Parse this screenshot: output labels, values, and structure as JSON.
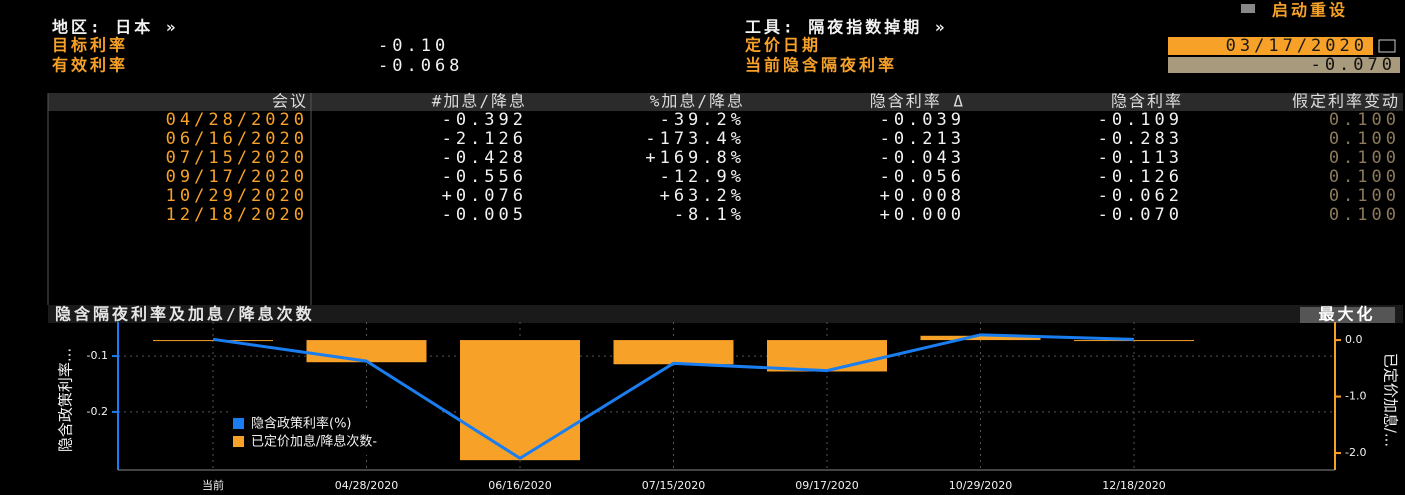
{
  "header": {
    "region": "地区: 日本 »",
    "target_rate_label": "目标利率",
    "target_rate": "-0.10",
    "effective_rate_label": "有效利率",
    "effective_rate": "-0.068",
    "instrument": "工具: 隔夜指数掉期 »",
    "pricing_date_label": "定价日期",
    "pricing_date": "03/17/2020",
    "implied_rate_label": "当前隐含隔夜利率",
    "implied_rate": "-0.070",
    "reset": "启动重设"
  },
  "table": {
    "columns": [
      "会议",
      "#加息/降息",
      "%加息/降息",
      "隐含利率 Δ",
      "隐含利率",
      "假定利率变动"
    ],
    "rows": [
      [
        "04/28/2020",
        "-0.392",
        "-39.2%",
        "-0.039",
        "-0.109",
        "0.100"
      ],
      [
        "06/16/2020",
        "-2.126",
        "-173.4%",
        "-0.213",
        "-0.283",
        "0.100"
      ],
      [
        "07/15/2020",
        "-0.428",
        "+169.8%",
        "-0.043",
        "-0.113",
        "0.100"
      ],
      [
        "09/17/2020",
        "-0.556",
        "-12.9%",
        "-0.056",
        "-0.126",
        "0.100"
      ],
      [
        "10/29/2020",
        "+0.076",
        "+63.2%",
        "+0.008",
        "-0.062",
        "0.100"
      ],
      [
        "12/18/2020",
        "-0.005",
        "-8.1%",
        "+0.000",
        "-0.070",
        "0.100"
      ]
    ]
  },
  "chart_data": {
    "type": "bar",
    "title": "隐含隔夜利率及加息/降息次数",
    "maximize": "最大化",
    "y_label": "隐含政策利率...",
    "y2_label": "已定价加息/...",
    "categories": [
      "当前",
      "04/28/2020",
      "06/16/2020",
      "07/15/2020",
      "09/17/2020",
      "10/29/2020",
      "12/18/2020"
    ],
    "series": [
      {
        "name": "已定价加息/降息次数-",
        "type": "bar",
        "axis": "y2",
        "color": "#f7a128",
        "values": [
          0,
          -0.392,
          -2.126,
          -0.428,
          -0.556,
          0.076,
          -0.005
        ]
      },
      {
        "name": "隐含政策利率(%)",
        "type": "line",
        "color": "#1a7ef0",
        "values": [
          -0.07,
          -0.109,
          -0.283,
          -0.113,
          -0.126,
          -0.062,
          -0.07
        ]
      }
    ],
    "ylim": [
      -0.304,
      -0.039
    ],
    "yticks": [
      -0.1,
      -0.2
    ],
    "y2lim": [
      -2.3,
      0.32
    ],
    "y2ticks": [
      {
        "value": 0,
        "label": "0.0"
      },
      {
        "value": -1,
        "label": "-1.0"
      },
      {
        "value": -2,
        "label": "-2.0"
      }
    ],
    "grid": true
  }
}
